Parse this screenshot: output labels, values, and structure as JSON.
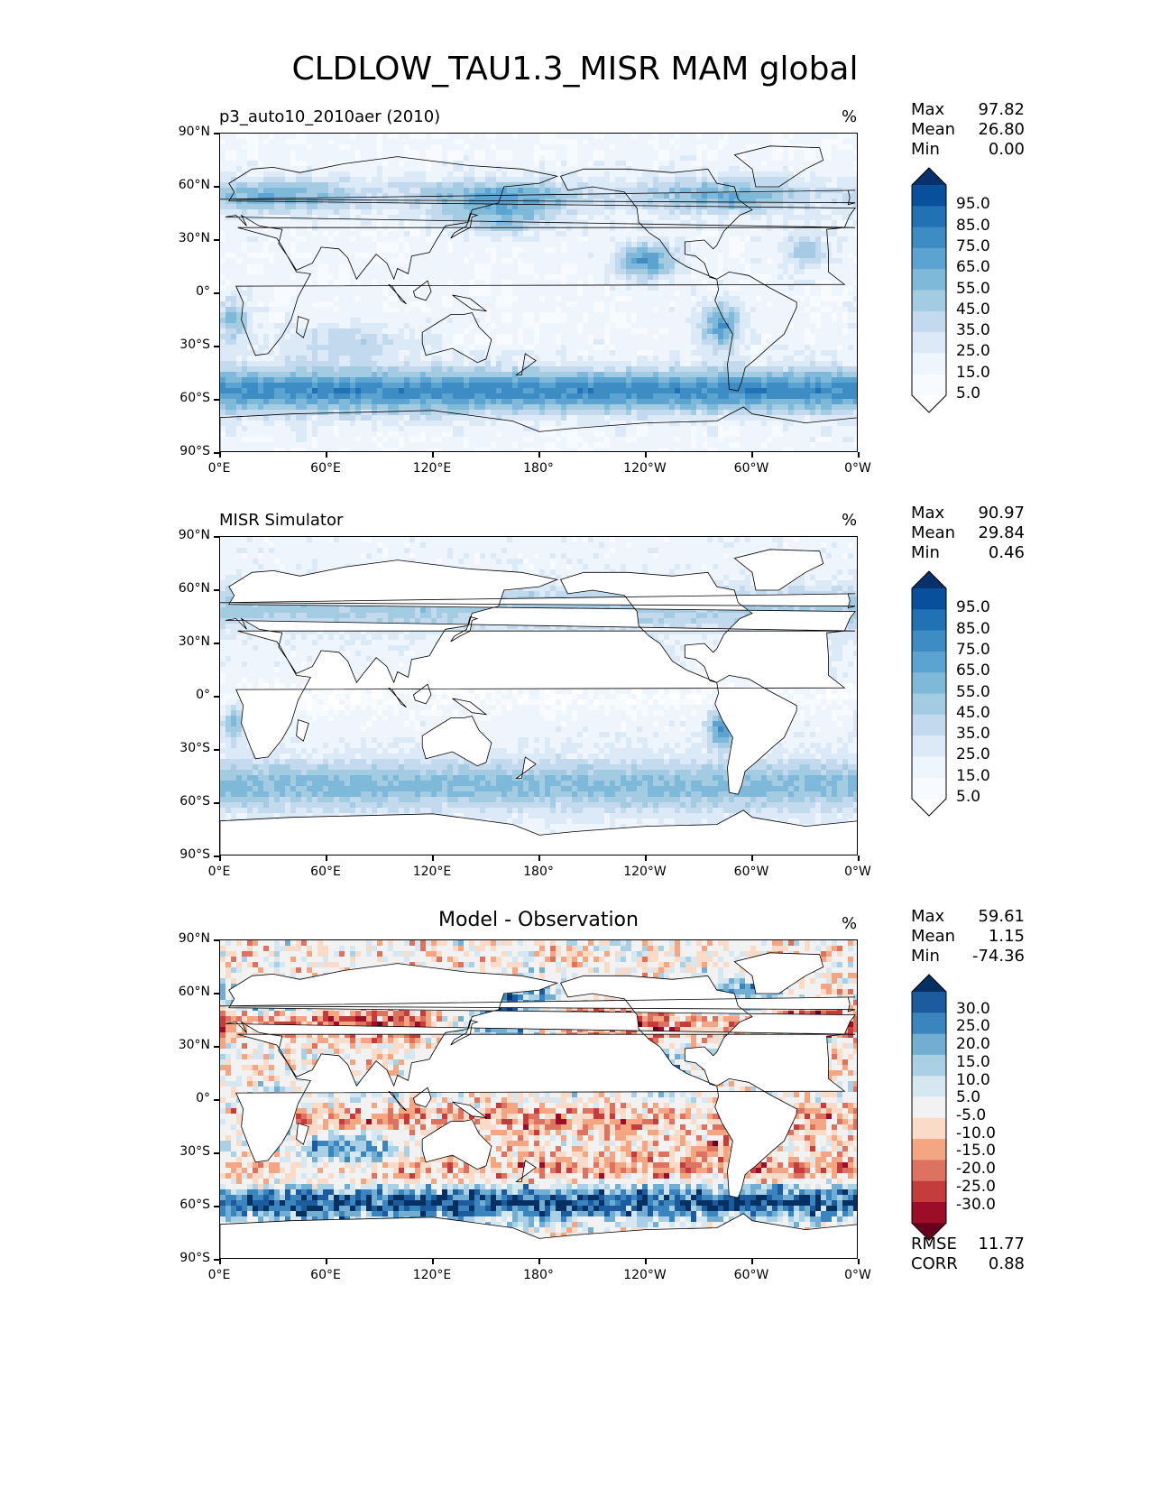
{
  "title": "CLDLOW_TAU1.3_MISR MAM global",
  "lat_ticks": [
    "90°N",
    "60°N",
    "30°N",
    "0°",
    "30°S",
    "60°S",
    "90°S"
  ],
  "lon_ticks": [
    "0°E",
    "60°E",
    "120°E",
    "180°",
    "120°W",
    "60°W",
    "0°W"
  ],
  "panels": [
    {
      "title": "p3_auto10_2010aer (2010)",
      "units": "%",
      "stats": {
        "max_label": "Max",
        "max": "97.82",
        "mean_label": "Mean",
        "mean": "26.80",
        "min_label": "Min",
        "min": "0.00"
      },
      "colorbar": {
        "labels": [
          "95.0",
          "85.0",
          "75.0",
          "65.0",
          "55.0",
          "45.0",
          "35.0",
          "25.0",
          "15.0",
          "5.0"
        ],
        "colors": [
          "#08306b",
          "#08509b",
          "#2171b5",
          "#3d8dc4",
          "#5ba3d0",
          "#7fb9da",
          "#a3cce3",
          "#c3daee",
          "#dce9f6",
          "#eef5fc",
          "#f7fbff",
          "#ffffff"
        ]
      }
    },
    {
      "title": "MISR Simulator",
      "units": "%",
      "stats": {
        "max_label": "Max",
        "max": "90.97",
        "mean_label": "Mean",
        "mean": "29.84",
        "min_label": "Min",
        "min": "0.46"
      },
      "colorbar": {
        "labels": [
          "95.0",
          "85.0",
          "75.0",
          "65.0",
          "55.0",
          "45.0",
          "35.0",
          "25.0",
          "15.0",
          "5.0"
        ],
        "colors": [
          "#08306b",
          "#08509b",
          "#2171b5",
          "#3d8dc4",
          "#5ba3d0",
          "#7fb9da",
          "#a3cce3",
          "#c3daee",
          "#dce9f6",
          "#eef5fc",
          "#f7fbff",
          "#ffffff"
        ]
      }
    },
    {
      "title": "Model - Observation",
      "units": "%",
      "stats": {
        "max_label": "Max",
        "max": "59.61",
        "mean_label": "Mean",
        "mean": "1.15",
        "min_label": "Min",
        "min": "-74.36"
      },
      "colorbar": {
        "labels": [
          "30.0",
          "25.0",
          "20.0",
          "15.0",
          "10.0",
          "5.0",
          "-5.0",
          "-10.0",
          "-15.0",
          "-20.0",
          "-25.0",
          "-30.0"
        ],
        "colors": [
          "#053061",
          "#1c5c9e",
          "#3a85bd",
          "#72aed2",
          "#a9d0e4",
          "#d5e7f1",
          "#f2f2f2",
          "#fadbc8",
          "#f4a582",
          "#de7260",
          "#c43c3c",
          "#9e0d27",
          "#67001f"
        ]
      },
      "error_stats": {
        "rmse_label": "RMSE",
        "rmse": "11.77",
        "corr_label": "CORR",
        "corr": "0.88"
      }
    }
  ]
}
